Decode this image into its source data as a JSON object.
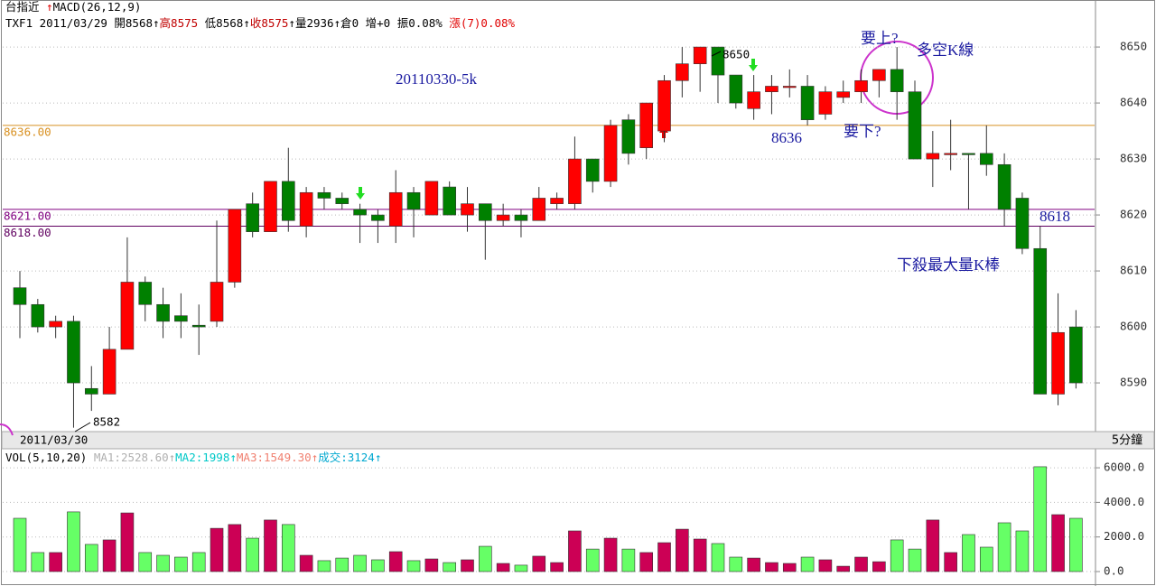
{
  "header": {
    "line1": [
      {
        "text": "台指近 ",
        "color": "#000"
      },
      {
        "text": "↑",
        "color": "#e00000"
      },
      {
        "text": "MACD(26,12,9)",
        "color": "#000"
      }
    ],
    "line2": [
      {
        "text": "TXF1 2011/03/29 開8568↑",
        "color": "#000"
      },
      {
        "text": "高8575",
        "color": "#c00000"
      },
      {
        "text": " 低8568↑",
        "color": "#000"
      },
      {
        "text": "收8575",
        "color": "#c00000"
      },
      {
        "text": "↑量2936↑倉0 增+0 振0.08% ",
        "color": "#000"
      },
      {
        "text": "漲(7)0.08%",
        "color": "#e00000"
      }
    ]
  },
  "chart_data": {
    "type": "candlestick",
    "open": [
      8607,
      8604,
      8600,
      8601,
      8589,
      8588,
      8596,
      8608,
      8604,
      8602,
      8600.3,
      8601,
      8608,
      8622,
      8617,
      8626,
      8618,
      8624,
      8623,
      8621,
      8620,
      8618,
      8624,
      8620,
      8625,
      8620,
      8622,
      8619,
      8620,
      8619,
      8622,
      8622,
      8630,
      8626,
      8637,
      8632,
      8635,
      8644,
      8647,
      8650,
      8645,
      8639,
      8642,
      8642.8,
      8643,
      8638,
      8641,
      8642,
      8644,
      8646,
      8642,
      8630,
      8630.8,
      8631,
      8631,
      8629,
      8623,
      8614,
      8588,
      8600
    ],
    "high": [
      8610,
      8605,
      8602,
      8602,
      8593,
      8600,
      8616,
      8609,
      8607,
      8606,
      8604,
      8619,
      8621,
      8624,
      8626,
      8632,
      8625,
      8625,
      8624,
      8622,
      8621,
      8628,
      8625,
      8626,
      8626,
      8625,
      8622,
      8622,
      8621,
      8625,
      8624,
      8634,
      8630,
      8637,
      8638,
      8640,
      8645,
      8650,
      8650,
      8650,
      8645,
      8645,
      8645,
      8646,
      8645,
      8643,
      8644,
      8646,
      8646,
      8650,
      8644,
      8635,
      8637,
      8631,
      8636,
      8631,
      8624,
      8618,
      8606,
      8603
    ],
    "low": [
      8598,
      8599,
      8598,
      8582,
      8585,
      8588,
      8596,
      8601,
      8598,
      8598,
      8595,
      8600,
      8607,
      8616,
      8617,
      8617,
      8616,
      8621,
      8621,
      8615,
      8615,
      8615,
      8616,
      8620,
      8620,
      8617,
      8612,
      8618,
      8616,
      8619,
      8621,
      8621,
      8624,
      8625,
      8629,
      8630,
      8633,
      8641,
      8642,
      8640,
      8639,
      8637,
      8638,
      8641,
      8636,
      8637,
      8640,
      8640,
      8641,
      8637,
      8630,
      8625,
      8628,
      8621,
      8627,
      8618,
      8613,
      8588,
      8586,
      8589
    ],
    "close": [
      8604,
      8600,
      8601,
      8590,
      8588,
      8596,
      8608,
      8604,
      8601,
      8601,
      8600,
      8608,
      8621,
      8617,
      8626,
      8619,
      8624,
      8623,
      8622,
      8620,
      8619,
      8624,
      8621,
      8626,
      8620,
      8622,
      8619,
      8620,
      8619,
      8623,
      8623,
      8630,
      8626,
      8636,
      8631,
      8640,
      8644,
      8647,
      8650,
      8645,
      8640,
      8642,
      8643,
      8643,
      8637,
      8642,
      8642,
      8644,
      8646,
      8642,
      8630,
      8631,
      8631,
      8630.8,
      8629,
      8621,
      8614,
      8588,
      8599,
      8590
    ],
    "ylim": [
      8581.3,
      8658.4
    ],
    "yticks": [
      8590,
      8600,
      8610,
      8620,
      8630,
      8640,
      8650
    ],
    "grid": true,
    "up_color": "#ff0000",
    "down_color": "#008000",
    "reference_lines": [
      {
        "value": 8636,
        "label": "8636.00",
        "color": "#d89020"
      },
      {
        "value": 8621,
        "label": "8621.00",
        "color": "#800080"
      },
      {
        "value": 8618,
        "label": "8618.00",
        "color": "#600060"
      }
    ],
    "annotations": [
      {
        "text": "20110330-5k",
        "color": "#1a1aa0"
      },
      {
        "text": "要上?",
        "color": "#1a1aa0"
      },
      {
        "text": "多空K線",
        "color": "#1a1aa0"
      },
      {
        "text": "8636",
        "color": "#1a1aa0"
      },
      {
        "text": "要下?",
        "color": "#1a1aa0"
      },
      {
        "text": "8618",
        "color": "#1a1aa0"
      },
      {
        "text": "下殺最大量K棒",
        "color": "#1a1aa0"
      },
      {
        "text": "8650",
        "color": "#000"
      },
      {
        "text": "8582",
        "color": "#000"
      }
    ],
    "x_label": "2011/03/30",
    "period": "5分鐘",
    "volume": {
      "legend": [
        {
          "text": "VOL(5,10,20) ",
          "color": "#000"
        },
        {
          "text": "MA1:2528.60↑",
          "color": "#b0b0b0"
        },
        {
          "text": "MA2:1998↑",
          "color": "#00c8c8"
        },
        {
          "text": "MA3:1549.30↑",
          "color": "#f08070"
        },
        {
          "text": "成交:3124↑",
          "color": "#00a8d0"
        }
      ],
      "values": [
        3080,
        1100,
        1100,
        3450,
        1570,
        1830,
        3390,
        1100,
        940,
        835,
        1100,
        2500,
        2720,
        1930,
        2980,
        2720,
        940,
        630,
        780,
        940,
        680,
        1150,
        630,
        730,
        520,
        680,
        1460,
        470,
        370,
        890,
        520,
        2350,
        1300,
        1930,
        1300,
        1100,
        1670,
        2450,
        1880,
        1620,
        835,
        780,
        520,
        470,
        835,
        680,
        310,
        835,
        570,
        1830,
        1300,
        2980,
        1100,
        2140,
        1410,
        2820,
        2350,
        6060,
        3290,
        3080
      ],
      "ylim": [
        -365,
        7100
      ],
      "yticks": [
        {
          "value": 0,
          "label": "0.0"
        },
        {
          "value": 2000,
          "label": "2000.0"
        },
        {
          "value": 4000,
          "label": "4000.0"
        },
        {
          "value": 6000,
          "label": "6000.0"
        }
      ],
      "up_color": "#cc0055",
      "down_color": "#66ff66"
    }
  }
}
